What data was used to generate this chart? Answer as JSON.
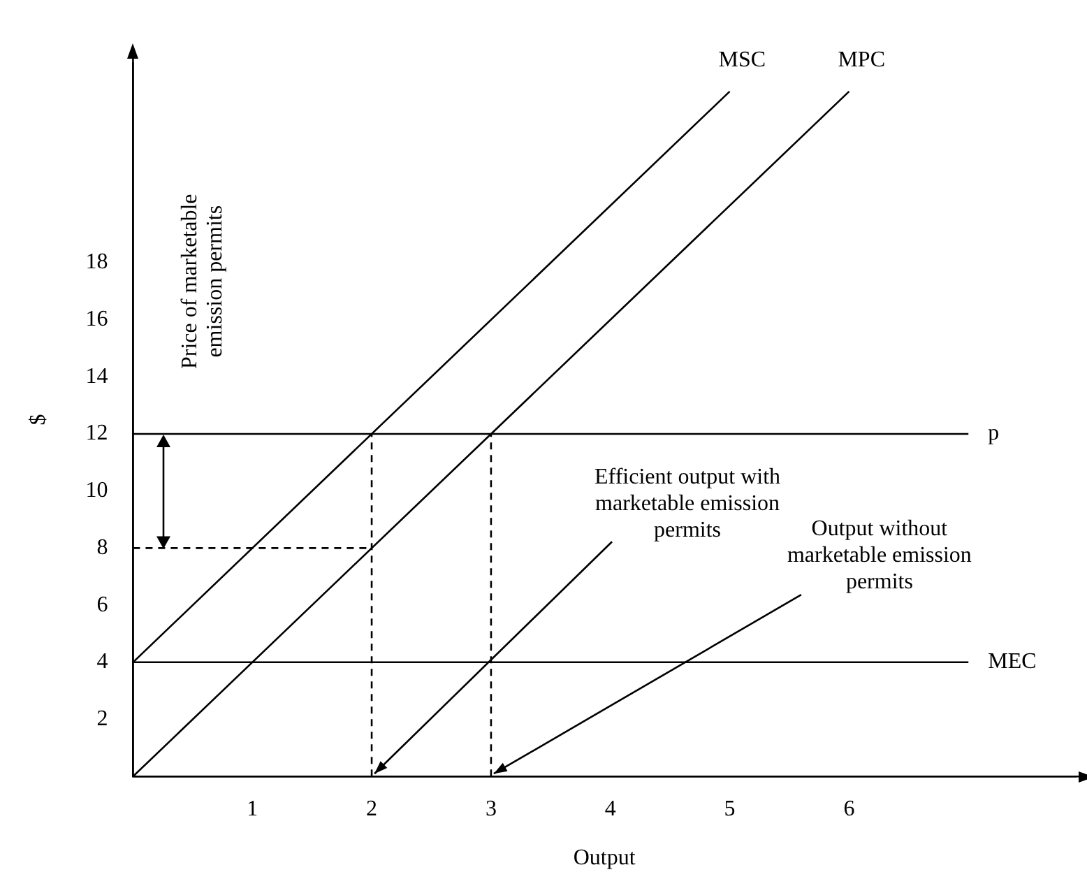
{
  "chart_data": {
    "type": "line",
    "xlabel": "Output",
    "ylabel": "$",
    "xlim": [
      0,
      7.9
    ],
    "ylim": [
      0,
      25
    ],
    "xticks": [
      1,
      2,
      3,
      4,
      5,
      6
    ],
    "yticks": [
      2,
      4,
      6,
      8,
      10,
      12,
      14,
      16,
      18
    ],
    "grid": false,
    "legend": false,
    "marker": "none",
    "series": [
      {
        "name": "MSC",
        "color": "#000000",
        "x": [
          0,
          5
        ],
        "values": [
          4,
          24
        ]
      },
      {
        "name": "MPC",
        "color": "#000000",
        "x": [
          0,
          6
        ],
        "values": [
          0,
          24
        ]
      },
      {
        "name": "p",
        "color": "#000000",
        "x": [
          0,
          7
        ],
        "values": [
          12,
          12
        ]
      },
      {
        "name": "MEC",
        "color": "#000000",
        "x": [
          0,
          7
        ],
        "values": [
          4,
          4
        ]
      },
      {
        "color": "#000000",
        "x": [
          2,
          2
        ],
        "values": [
          0,
          12
        ],
        "line_style": "dashed"
      },
      {
        "color": "#000000",
        "x": [
          3,
          3
        ],
        "values": [
          0,
          12
        ],
        "line_style": "dashed"
      },
      {
        "color": "#000000",
        "x": [
          0,
          2
        ],
        "values": [
          8,
          8
        ],
        "line_style": "dashed"
      }
    ],
    "annotations": [
      "Price of marketable emission permits",
      {
        "text": "Efficient output with marketable emission permits",
        "x": 2,
        "y": 0
      },
      {
        "text": "Output without marketable emission permits",
        "x": 3,
        "y": 0
      }
    ]
  }
}
